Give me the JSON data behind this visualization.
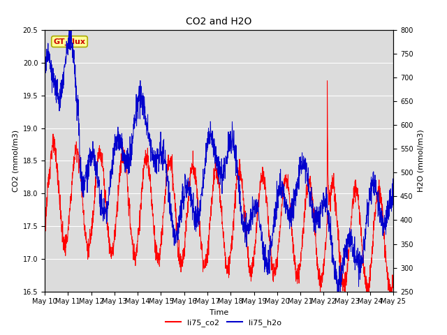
{
  "title": "CO2 and H2O",
  "xlabel": "Time",
  "ylabel_left": "CO2 (mmol/m3)",
  "ylabel_right": "H2O (mmol/m3)",
  "annotation": "GT_flux",
  "ylim_left": [
    16.5,
    20.5
  ],
  "ylim_right": [
    250,
    800
  ],
  "yticks_left": [
    16.5,
    17.0,
    17.5,
    18.0,
    18.5,
    19.0,
    19.5,
    20.0,
    20.5
  ],
  "yticks_right": [
    250,
    300,
    350,
    400,
    450,
    500,
    550,
    600,
    650,
    700,
    750,
    800
  ],
  "xtick_labels": [
    "May 10",
    "May 11",
    "May 12",
    "May 13",
    "May 14",
    "May 15",
    "May 16",
    "May 17",
    "May 18",
    "May 19",
    "May 20",
    "May 21",
    "May 22",
    "May 23",
    "May 24",
    "May 25"
  ],
  "co2_color": "#FF0000",
  "h2o_color": "#0000CC",
  "background_color": "#DCDCDC",
  "legend_co2": "li75_co2",
  "legend_h2o": "li75_h2o",
  "gt_flux_bg": "#FFFF99",
  "gt_flux_color": "#CC0000",
  "gt_flux_border": "#AAAA00",
  "title_fontsize": 10,
  "label_fontsize": 8,
  "tick_fontsize": 7,
  "legend_fontsize": 8,
  "linewidth": 0.7
}
